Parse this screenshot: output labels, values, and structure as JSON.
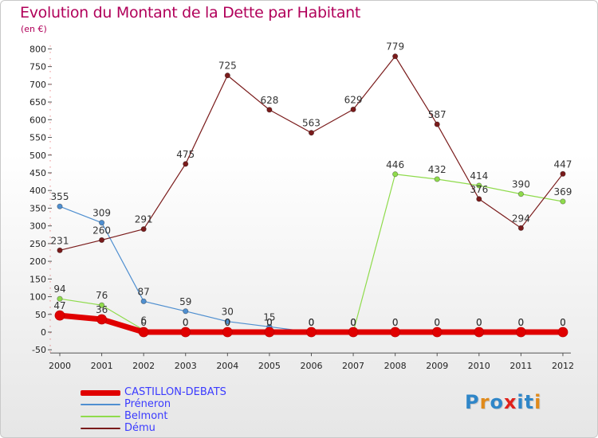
{
  "title": "Evolution du Montant de la Dette par Habitant",
  "unit_label": "(en €)",
  "brand": "Proxiti",
  "chart_data": {
    "type": "line",
    "title": "Evolution du Montant de la Dette par Habitant",
    "subtitle": "(en €)",
    "xlabel": "",
    "ylabel": "",
    "x": [
      "2000",
      "2001",
      "2002",
      "2003",
      "2004",
      "2005",
      "2006",
      "2007",
      "2008",
      "2009",
      "2010",
      "2011",
      "2012"
    ],
    "ylim": [
      -50,
      800
    ],
    "yticks": [
      -50,
      0,
      50,
      100,
      150,
      200,
      250,
      300,
      350,
      400,
      450,
      500,
      550,
      600,
      650,
      700,
      750,
      800
    ],
    "grid": false,
    "legend_position": "bottom-left",
    "series": [
      {
        "name": "CASTILLON-DEBATS",
        "color": "#e00000",
        "emphasis": "thick",
        "values": [
          47,
          36,
          0,
          0,
          0,
          0,
          0,
          0,
          0,
          0,
          0,
          0,
          0
        ]
      },
      {
        "name": "Préneron",
        "color": "#4f8fd0",
        "values": [
          355,
          309,
          87,
          59,
          30,
          15,
          0,
          0,
          0,
          0,
          0,
          0,
          0
        ]
      },
      {
        "name": "Belmont",
        "color": "#8fdb4c",
        "values": [
          94,
          76,
          6,
          0,
          0,
          0,
          0,
          0,
          446,
          432,
          414,
          390,
          369
        ]
      },
      {
        "name": "Dému",
        "color": "#7a1b1b",
        "values": [
          231,
          260,
          291,
          475,
          725,
          628,
          563,
          629,
          779,
          587,
          376,
          294,
          447
        ]
      }
    ]
  }
}
